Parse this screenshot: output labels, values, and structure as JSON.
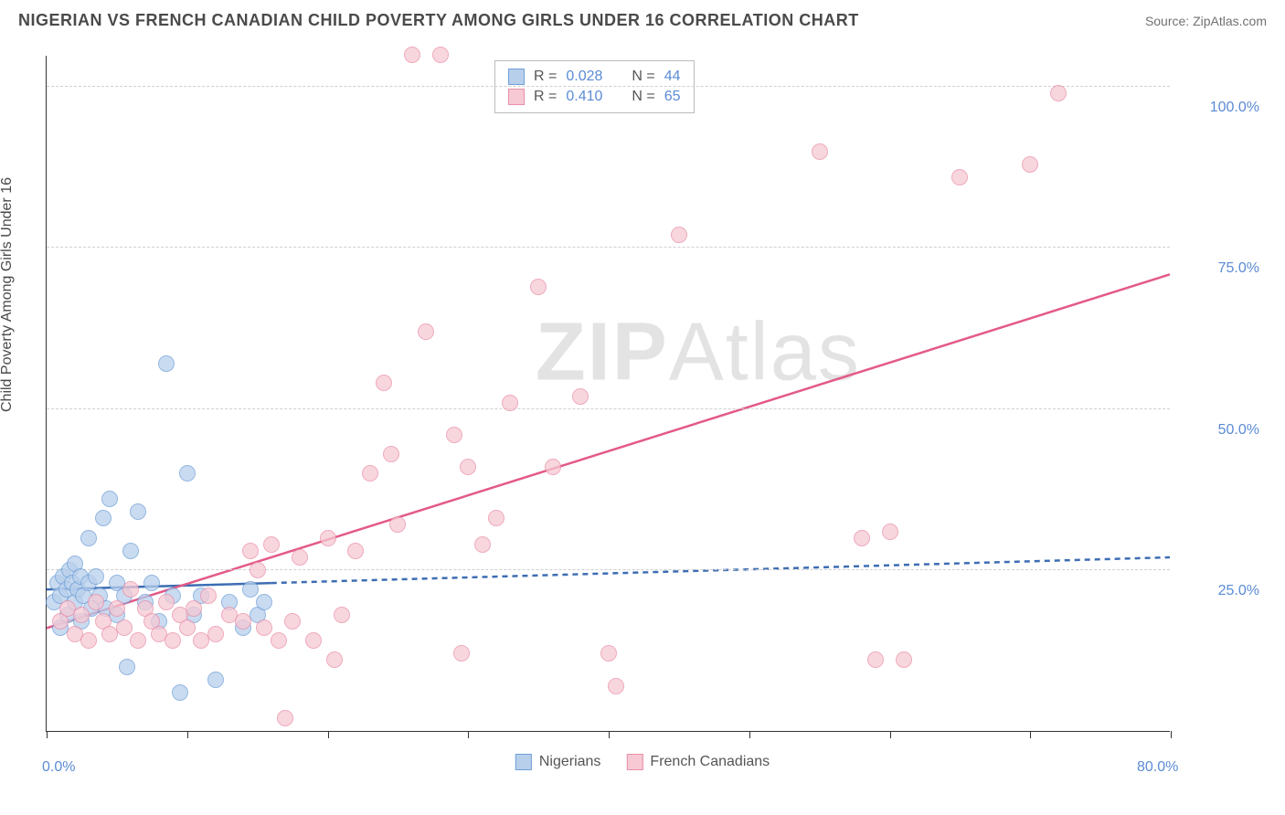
{
  "header": {
    "title": "NIGERIAN VS FRENCH CANADIAN CHILD POVERTY AMONG GIRLS UNDER 16 CORRELATION CHART",
    "source": "Source: ZipAtlas.com"
  },
  "watermark": {
    "text_a": "ZIP",
    "text_b": "Atlas"
  },
  "chart": {
    "type": "scatter",
    "background_color": "#ffffff",
    "grid_color": "#cfcfcf",
    "axis_color": "#333333",
    "y_axis_label": "Child Poverty Among Girls Under 16",
    "label_fontsize": 16,
    "label_color": "#4a4a4a",
    "tick_label_color": "#5b8bd4",
    "tick_fontsize": 16,
    "xlim": [
      0,
      80
    ],
    "ylim": [
      0,
      105
    ],
    "x_ticks": [
      0,
      10,
      20,
      30,
      40,
      50,
      60,
      70,
      80
    ],
    "x_tick_labels": {
      "0": "0.0%",
      "80": "80.0%"
    },
    "y_gridlines": [
      25,
      50,
      75,
      100
    ],
    "y_tick_labels": {
      "25": "25.0%",
      "50": "50.0%",
      "75": "75.0%",
      "100": "100.0%"
    },
    "marker_radius": 9,
    "marker_border_width": 1.5,
    "series": [
      {
        "name": "Nigerians",
        "fill": "#b8cfeb",
        "stroke": "#6f9fd8",
        "stats_R": "0.028",
        "stats_N": "44",
        "trend": {
          "x1": 0,
          "y1": 22,
          "x2": 80,
          "y2": 27,
          "solid_until_x": 16,
          "stroke": "#3d6db3",
          "width": 2.5,
          "dash": "6,5"
        },
        "points": [
          [
            0.5,
            20
          ],
          [
            0.8,
            23
          ],
          [
            1,
            16
          ],
          [
            1,
            21
          ],
          [
            1.2,
            24
          ],
          [
            1.4,
            22
          ],
          [
            1.5,
            18
          ],
          [
            1.6,
            25
          ],
          [
            1.8,
            23
          ],
          [
            2,
            26
          ],
          [
            2,
            20
          ],
          [
            2.2,
            22
          ],
          [
            2.4,
            24
          ],
          [
            2.5,
            17
          ],
          [
            2.6,
            21
          ],
          [
            3,
            23
          ],
          [
            3,
            30
          ],
          [
            3.2,
            19
          ],
          [
            3.5,
            24
          ],
          [
            3.8,
            21
          ],
          [
            4,
            33
          ],
          [
            4.2,
            19
          ],
          [
            4.5,
            36
          ],
          [
            5,
            23
          ],
          [
            5,
            18
          ],
          [
            5.5,
            21
          ],
          [
            5.7,
            10
          ],
          [
            6,
            28
          ],
          [
            6.5,
            34
          ],
          [
            7,
            20
          ],
          [
            7.5,
            23
          ],
          [
            8,
            17
          ],
          [
            8.5,
            57
          ],
          [
            9,
            21
          ],
          [
            9.5,
            6
          ],
          [
            10,
            40
          ],
          [
            10.5,
            18
          ],
          [
            11,
            21
          ],
          [
            12,
            8
          ],
          [
            13,
            20
          ],
          [
            14,
            16
          ],
          [
            14.5,
            22
          ],
          [
            15,
            18
          ],
          [
            15.5,
            20
          ]
        ]
      },
      {
        "name": "French Canadians",
        "fill": "#f6c9d4",
        "stroke": "#e98fa8",
        "stats_R": "0.410",
        "stats_N": "65",
        "trend": {
          "x1": 0,
          "y1": 16,
          "x2": 80,
          "y2": 71,
          "solid_until_x": 80,
          "stroke": "#e35a87",
          "width": 2.5,
          "dash": null
        },
        "points": [
          [
            1,
            17
          ],
          [
            1.5,
            19
          ],
          [
            2,
            15
          ],
          [
            2.5,
            18
          ],
          [
            3,
            14
          ],
          [
            3.5,
            20
          ],
          [
            4,
            17
          ],
          [
            4.5,
            15
          ],
          [
            5,
            19
          ],
          [
            5.5,
            16
          ],
          [
            6,
            22
          ],
          [
            6.5,
            14
          ],
          [
            7,
            19
          ],
          [
            7.5,
            17
          ],
          [
            8,
            15
          ],
          [
            8.5,
            20
          ],
          [
            9,
            14
          ],
          [
            9.5,
            18
          ],
          [
            10,
            16
          ],
          [
            10.5,
            19
          ],
          [
            11,
            14
          ],
          [
            11.5,
            21
          ],
          [
            12,
            15
          ],
          [
            13,
            18
          ],
          [
            14,
            17
          ],
          [
            14.5,
            28
          ],
          [
            15,
            25
          ],
          [
            15.5,
            16
          ],
          [
            16,
            29
          ],
          [
            16.5,
            14
          ],
          [
            17,
            2
          ],
          [
            17.5,
            17
          ],
          [
            18,
            27
          ],
          [
            19,
            14
          ],
          [
            20,
            30
          ],
          [
            20.5,
            11
          ],
          [
            21,
            18
          ],
          [
            22,
            28
          ],
          [
            23,
            40
          ],
          [
            24,
            54
          ],
          [
            24.5,
            43
          ],
          [
            25,
            32
          ],
          [
            26,
            105
          ],
          [
            27,
            62
          ],
          [
            28,
            105
          ],
          [
            29,
            46
          ],
          [
            29.5,
            12
          ],
          [
            30,
            41
          ],
          [
            31,
            29
          ],
          [
            32,
            33
          ],
          [
            33,
            51
          ],
          [
            35,
            69
          ],
          [
            36,
            41
          ],
          [
            38,
            52
          ],
          [
            40,
            12
          ],
          [
            40.5,
            7
          ],
          [
            45,
            77
          ],
          [
            55,
            90
          ],
          [
            58,
            30
          ],
          [
            59,
            11
          ],
          [
            60,
            31
          ],
          [
            61,
            11
          ],
          [
            65,
            86
          ],
          [
            70,
            88
          ],
          [
            72,
            99
          ]
        ]
      }
    ]
  },
  "legend_stats": {
    "R_label": "R =",
    "N_label": "N ="
  }
}
